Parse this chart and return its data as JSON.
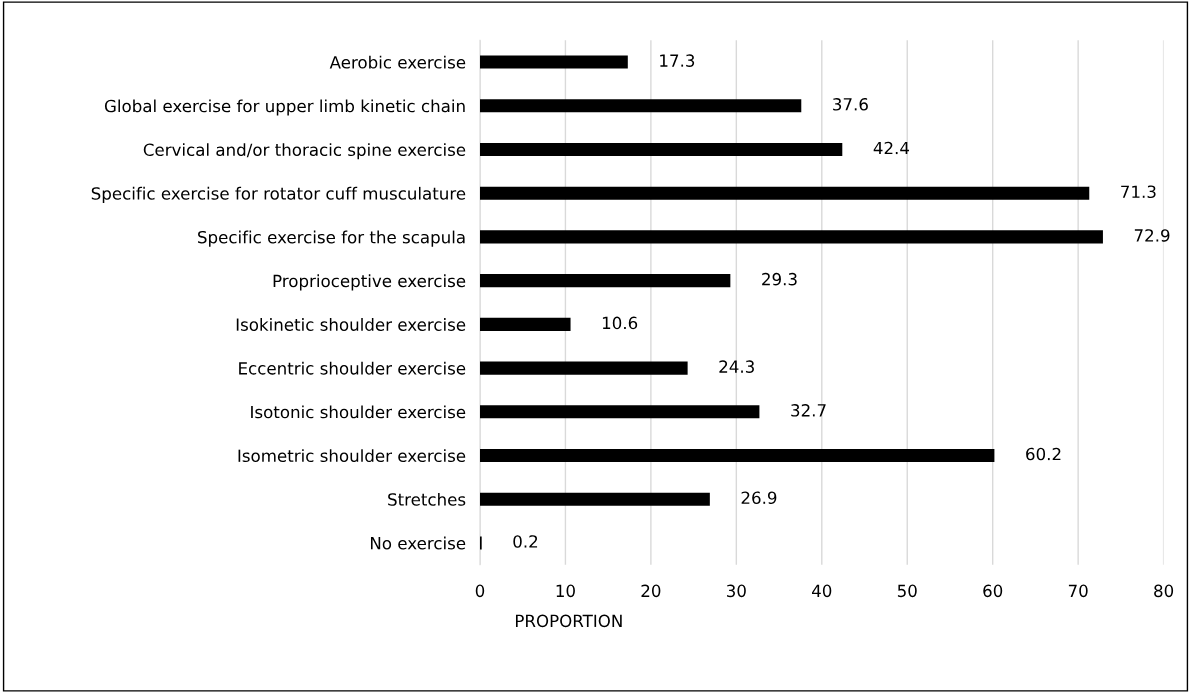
{
  "chart_data": {
    "type": "bar",
    "orientation": "horizontal",
    "xlabel": "PROPORTION",
    "categories": [
      "Aerobic exercise",
      "Global exercise for upper limb kinetic chain",
      "Cervical and/or thoracic spine exercise",
      "Specific exercise for rotator cuff musculature",
      "Specific exercise for the scapula",
      "Proprioceptive exercise",
      "Isokinetic shoulder exercise",
      "Eccentric shoulder exercise",
      "Isotonic shoulder exercise",
      "Isometric shoulder exercise",
      "Stretches",
      "No exercise"
    ],
    "values": [
      17.3,
      37.6,
      42.4,
      71.3,
      72.9,
      29.3,
      10.6,
      24.3,
      32.7,
      60.2,
      26.9,
      0.2
    ],
    "color": "#000000",
    "xlim": [
      0,
      80
    ],
    "xticks": [
      0,
      10,
      20,
      30,
      40,
      50,
      60,
      70,
      80
    ],
    "grid": "x",
    "data_labels": true
  }
}
